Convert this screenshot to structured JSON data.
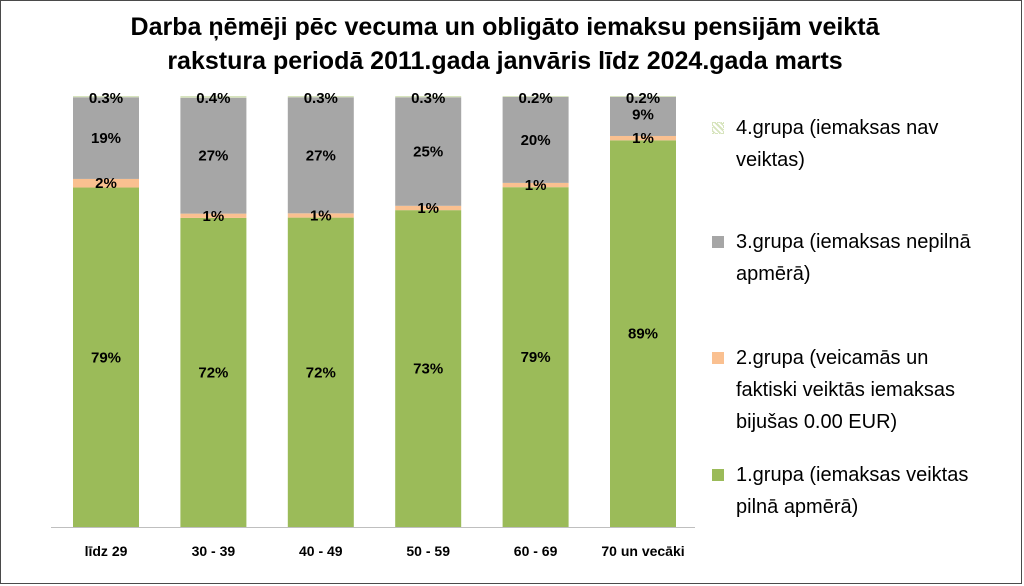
{
  "chart_data": {
    "type": "bar",
    "stacked": true,
    "title_lines": [
      "Darba ņēmēji pēc vecuma un obligāto iemaksu pensijām veiktā",
      "rakstura periodā 2011.gada janvāris līdz 2024.gada marts"
    ],
    "categories": [
      "līdz 29",
      "30 - 39",
      "40 - 49",
      "50 - 59",
      "60 - 69",
      "70 un vecāki"
    ],
    "ylim": [
      0,
      100
    ],
    "legend_position": "right",
    "series": [
      {
        "name": "1.grupa (iemaksas veiktas pilnā apmērā)",
        "color": "#9BBB59",
        "values": [
          79,
          72,
          72,
          73,
          79,
          89
        ],
        "labels": [
          "79%",
          "72%",
          "72%",
          "73%",
          "79%",
          "89%"
        ]
      },
      {
        "name": "2.grupa (veicamās un faktiski veiktās iemaksas bijušas 0.00 EUR)",
        "color": "#FAC090",
        "values": [
          2,
          1,
          1,
          1,
          1,
          1
        ],
        "labels": [
          "2%",
          "1%",
          "1%",
          "1%",
          "1%",
          "1%"
        ]
      },
      {
        "name": "3.grupa (iemaksas nepilnā apmērā)",
        "color": "#A6A6A6",
        "values": [
          19,
          27,
          27,
          25,
          20,
          9
        ],
        "labels": [
          "19%",
          "27%",
          "27%",
          "25%",
          "20%",
          "9%"
        ]
      },
      {
        "name": "4.grupa (iemaksas nav veiktas)",
        "color": "#D7E4BD",
        "values": [
          0.3,
          0.4,
          0.3,
          0.3,
          0.2,
          0.2
        ],
        "labels": [
          "0.3%",
          "0.4%",
          "0.3%",
          "0.3%",
          "0.2%",
          "0.2%"
        ]
      }
    ],
    "legend_lines": [
      [
        "4.grupa (iemaksas nav",
        "veiktas)"
      ],
      [
        "3.grupa (iemaksas nepilnā",
        "apmērā)"
      ],
      [
        "2.grupa (veicamās un",
        "faktiski veiktās iemaksas",
        "bijušas 0.00 EUR)"
      ],
      [
        "1.grupa (iemaksas veiktas",
        "pilnā apmērā)"
      ]
    ]
  }
}
